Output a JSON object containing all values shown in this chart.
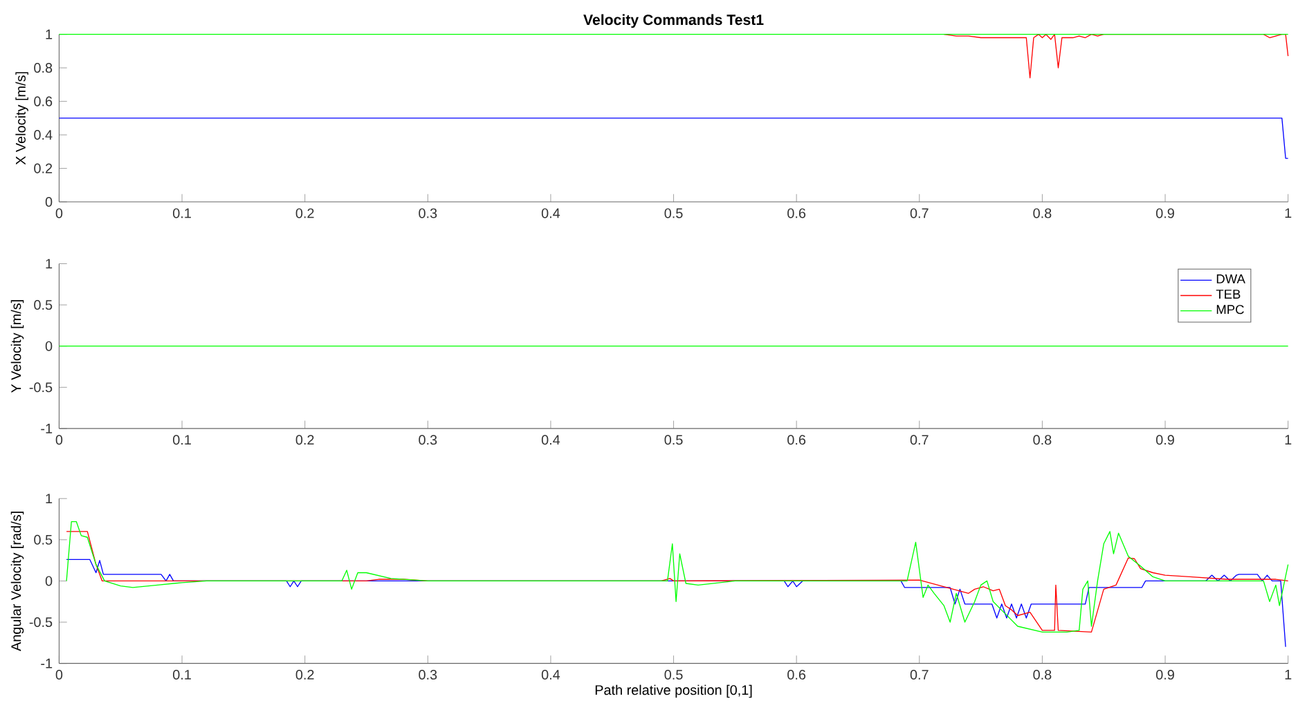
{
  "chart_data": [
    {
      "type": "line",
      "title": "Velocity Commands Test1",
      "ylabel": "X Velocity [m/s]",
      "xlim": [
        0,
        1
      ],
      "xticks": [
        0,
        0.1,
        0.2,
        0.3,
        0.4,
        0.5,
        0.6,
        0.7,
        0.8,
        0.9,
        1
      ],
      "ylim": [
        0,
        1
      ],
      "yticks": [
        0,
        0.2,
        0.4,
        0.6,
        0.8,
        1
      ],
      "grid": false,
      "legend": false,
      "series": [
        {
          "color": "#0000ff",
          "x": [
            0,
            0.995,
            0.998,
            1
          ],
          "values": [
            0.5,
            0.5,
            0.26,
            0.26
          ]
        },
        {
          "color": "#ff0000",
          "x": [
            0.72,
            0.73,
            0.74,
            0.75,
            0.76,
            0.78,
            0.787,
            0.79,
            0.793,
            0.797,
            0.8,
            0.803,
            0.807,
            0.81,
            0.813,
            0.816,
            0.825,
            0.83,
            0.835,
            0.84,
            0.845,
            0.85,
            0.98,
            0.985,
            0.99,
            0.995,
            0.998,
            1
          ],
          "values": [
            1,
            0.99,
            0.99,
            0.98,
            0.98,
            0.98,
            0.98,
            0.74,
            0.98,
            1,
            0.98,
            1,
            0.97,
            1,
            0.8,
            0.98,
            0.98,
            0.99,
            0.98,
            1,
            0.99,
            1,
            1,
            0.98,
            0.99,
            1,
            1,
            0.87
          ]
        },
        {
          "color": "#00ff00",
          "x": [
            0,
            1
          ],
          "values": [
            1,
            1
          ]
        }
      ]
    },
    {
      "type": "line",
      "ylabel": "Y Velocity [m/s]",
      "xlim": [
        0,
        1
      ],
      "xticks": [
        0,
        0.1,
        0.2,
        0.3,
        0.4,
        0.5,
        0.6,
        0.7,
        0.8,
        0.9,
        1
      ],
      "ylim": [
        -1,
        1
      ],
      "yticks": [
        -1,
        -0.5,
        0,
        0.5,
        1
      ],
      "grid": false,
      "legend": "top right",
      "series": [
        {
          "name": "DWA",
          "color": "#0000ff",
          "values": [
            null,
            null
          ]
        },
        {
          "name": "TEB",
          "color": "#ff0000",
          "values": [
            null,
            null
          ]
        },
        {
          "name": "MPC",
          "color": "#00ff00",
          "x": [
            0,
            1
          ],
          "values": [
            0,
            0
          ]
        }
      ]
    },
    {
      "type": "line",
      "ylabel": "Angular Velocity [rad/s]",
      "xlabel": "Path relative position [0,1]",
      "xlim": [
        0,
        1
      ],
      "xticks": [
        0,
        0.1,
        0.2,
        0.3,
        0.4,
        0.5,
        0.6,
        0.7,
        0.8,
        0.9,
        1
      ],
      "ylim": [
        -1,
        1
      ],
      "yticks": [
        -1,
        -0.5,
        0,
        0.5,
        1
      ],
      "grid": false,
      "legend": false,
      "series": [
        {
          "color": "#0000ff",
          "x": [
            0.006,
            0.025,
            0.03,
            0.033,
            0.036,
            0.083,
            0.087,
            0.09,
            0.093,
            0.185,
            0.188,
            0.191,
            0.194,
            0.197,
            0.59,
            0.593,
            0.597,
            0.6,
            0.605,
            0.685,
            0.688,
            0.725,
            0.729,
            0.733,
            0.737,
            0.74,
            0.759,
            0.763,
            0.767,
            0.771,
            0.775,
            0.779,
            0.783,
            0.787,
            0.791,
            0.795,
            0.835,
            0.838,
            0.881,
            0.884,
            0.933,
            0.938,
            0.943,
            0.948,
            0.953,
            0.958,
            0.96,
            0.975,
            0.979,
            0.983,
            0.987,
            0.99,
            0.994,
            0.998
          ],
          "values": [
            0.26,
            0.26,
            0.1,
            0.25,
            0.08,
            0.08,
            0,
            0.08,
            0,
            0,
            -0.07,
            0,
            -0.07,
            0,
            0,
            -0.07,
            0,
            -0.07,
            0,
            0,
            -0.08,
            -0.08,
            -0.28,
            -0.1,
            -0.28,
            -0.28,
            -0.28,
            -0.45,
            -0.28,
            -0.45,
            -0.28,
            -0.45,
            -0.28,
            -0.45,
            -0.28,
            -0.28,
            -0.28,
            -0.08,
            -0.08,
            0,
            0,
            0.07,
            0,
            0.07,
            0,
            0.07,
            0.08,
            0.08,
            0,
            0.07,
            0,
            0,
            0,
            -0.8
          ]
        },
        {
          "color": "#ff0000",
          "x": [
            0.006,
            0.023,
            0.03,
            0.035,
            0.25,
            0.26,
            0.28,
            0.3,
            0.49,
            0.497,
            0.5,
            0.7,
            0.74,
            0.745,
            0.752,
            0.76,
            0.765,
            0.77,
            0.775,
            0.78,
            0.79,
            0.8,
            0.81,
            0.811,
            0.813,
            0.84,
            0.85,
            0.86,
            0.87,
            0.875,
            0.88,
            0.89,
            0.9,
            0.92,
            0.95,
            0.99,
            1
          ],
          "values": [
            0.6,
            0.6,
            0.2,
            0,
            0,
            0.02,
            0.02,
            0,
            0,
            0.03,
            0,
            0.01,
            -0.15,
            -0.1,
            -0.07,
            -0.12,
            -0.1,
            -0.3,
            -0.35,
            -0.42,
            -0.38,
            -0.6,
            -0.6,
            -0.05,
            -0.6,
            -0.62,
            -0.1,
            -0.05,
            0.28,
            0.27,
            0.15,
            0.1,
            0.07,
            0.05,
            0.02,
            0.02,
            0
          ]
        },
        {
          "color": "#00ff00",
          "x": [
            0.006,
            0.01,
            0.014,
            0.018,
            0.023,
            0.03,
            0.037,
            0.05,
            0.06,
            0.08,
            0.1,
            0.12,
            0.23,
            0.234,
            0.238,
            0.243,
            0.25,
            0.27,
            0.3,
            0.495,
            0.499,
            0.502,
            0.505,
            0.51,
            0.52,
            0.55,
            0.69,
            0.697,
            0.703,
            0.707,
            0.712,
            0.72,
            0.725,
            0.73,
            0.737,
            0.745,
            0.75,
            0.755,
            0.76,
            0.77,
            0.78,
            0.8,
            0.82,
            0.83,
            0.833,
            0.837,
            0.84,
            0.845,
            0.85,
            0.855,
            0.858,
            0.862,
            0.87,
            0.88,
            0.89,
            0.9,
            0.98,
            0.985,
            0.99,
            0.993,
            1
          ],
          "values": [
            0,
            0.72,
            0.72,
            0.55,
            0.53,
            0.2,
            0,
            -0.06,
            -0.08,
            -0.05,
            -0.02,
            0,
            0,
            0.13,
            -0.1,
            0.1,
            0.1,
            0.03,
            0,
            0,
            0.45,
            -0.25,
            0.33,
            -0.03,
            -0.05,
            0,
            0,
            0.47,
            -0.2,
            -0.05,
            -0.15,
            -0.3,
            -0.5,
            -0.15,
            -0.5,
            -0.25,
            -0.05,
            0,
            -0.25,
            -0.4,
            -0.55,
            -0.62,
            -0.62,
            -0.6,
            -0.1,
            0,
            -0.55,
            0,
            0.45,
            0.6,
            0.33,
            0.58,
            0.3,
            0.18,
            0.05,
            0,
            0,
            -0.25,
            -0.05,
            -0.3,
            0.2
          ]
        }
      ]
    }
  ]
}
